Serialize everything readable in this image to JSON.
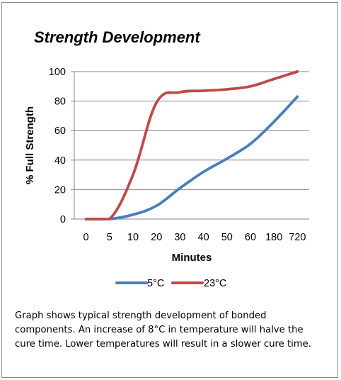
{
  "chart_data": {
    "type": "line",
    "title": "Strength Development",
    "xlabel": "Minutes",
    "ylabel": "% Full Strength",
    "categories": [
      "0",
      "5",
      "10",
      "20",
      "30",
      "40",
      "50",
      "60",
      "180",
      "720"
    ],
    "ylim": [
      0,
      100
    ],
    "yticks": [
      "0",
      "20",
      "40",
      "60",
      "80",
      "100"
    ],
    "grid": "horizontal",
    "legend_position": "bottom",
    "series": [
      {
        "name": "5°C",
        "color": "#4a7ebb",
        "values": [
          0,
          0,
          3,
          9,
          21,
          32,
          41,
          51,
          66,
          83
        ]
      },
      {
        "name": "23°C",
        "color": "#be4b48",
        "values": [
          0,
          0,
          30,
          79,
          86,
          87,
          88,
          90,
          95,
          100
        ]
      }
    ]
  },
  "caption": "Graph shows typical strength development of bonded components.  An increase of 8°C in temperature will halve the cure time. Lower temperatures will result in a slower cure time."
}
